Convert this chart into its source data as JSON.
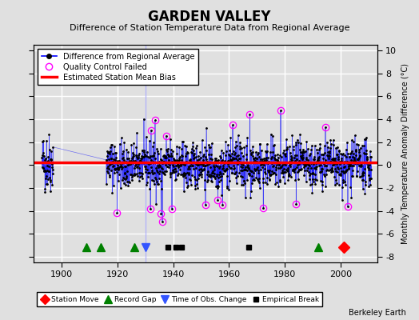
{
  "title": "GARDEN VALLEY",
  "subtitle": "Difference of Station Temperature Data from Regional Average",
  "ylabel": "Monthly Temperature Anomaly Difference (°C)",
  "xlim": [
    1890,
    2013
  ],
  "ylim": [
    -8.5,
    10.5
  ],
  "yticks": [
    -8,
    -6,
    -4,
    -2,
    0,
    2,
    4,
    6,
    8,
    10
  ],
  "xticks": [
    1900,
    1920,
    1940,
    1960,
    1980,
    2000
  ],
  "bg_color": "#e0e0e0",
  "grid_color": "#ffffff",
  "seed": 42,
  "bias_value": 0.25,
  "data_start": 1893,
  "data_end": 2011,
  "gap_start": 1897,
  "gap_end": 1916,
  "station_moves": [
    2001
  ],
  "record_gaps": [
    1909,
    1914,
    1926,
    1992
  ],
  "obs_changes": [
    1930
  ],
  "empirical_breaks": [
    1938,
    1941,
    1943,
    1967
  ],
  "event_y": -7.2,
  "annotation": "Berkeley Earth"
}
